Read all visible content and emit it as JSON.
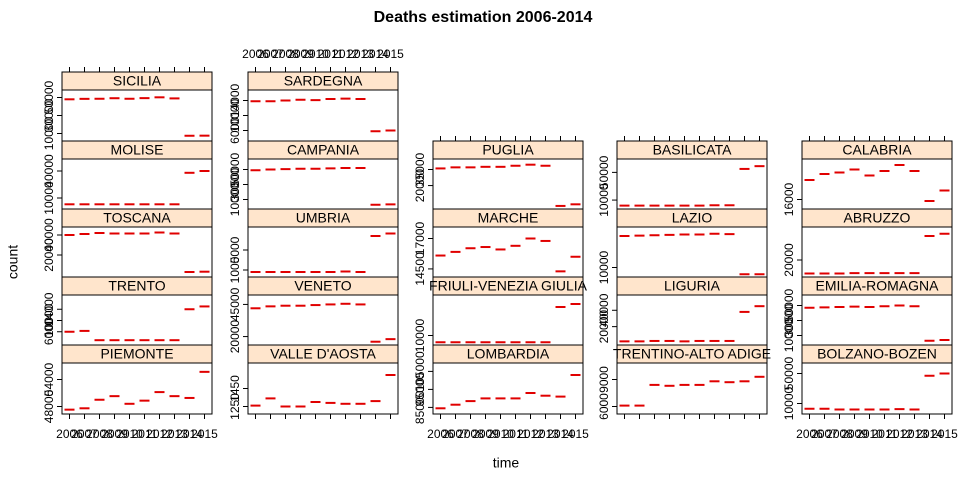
{
  "chart_data": {
    "type": "dash",
    "title": "Deaths estimation 2006-2014",
    "x_label": "time",
    "y_label": "count",
    "color": "#e00000",
    "x": [
      2006,
      2007,
      2008,
      2009,
      2010,
      2011,
      2012,
      2013,
      2014,
      2015
    ],
    "xlim": [
      2005.5,
      2015.5
    ],
    "xticks": [
      2006,
      2007,
      2008,
      2009,
      2010,
      2011,
      2012,
      2013,
      2014,
      2015
    ],
    "panels": [
      {
        "name": "SICILIA",
        "ylim": [
          5000,
          55000
        ],
        "yticks": [
          10000,
          30000,
          50000
        ],
        "values": [
          48000,
          48500,
          48600,
          49200,
          48600,
          49300,
          50200,
          49000,
          7500,
          7600
        ]
      },
      {
        "name": "MOLISE",
        "ylim": [
          0,
          50000
        ],
        "yticks": [
          10000,
          40000
        ],
        "values": [
          3000,
          3000,
          3000,
          3000,
          3000,
          3000,
          3000,
          3000,
          38000,
          40000
        ]
      },
      {
        "name": "TOSCANA",
        "ylim": [
          0,
          45000
        ],
        "yticks": [
          20000,
          40000
        ],
        "values": [
          40000,
          41000,
          42000,
          41500,
          41500,
          41500,
          42500,
          41500,
          3000,
          3300
        ]
      },
      {
        "name": "TRENTO",
        "ylim": [
          2000,
          18000
        ],
        "yticks": [
          6000,
          10000,
          14000
        ],
        "values": [
          6000,
          6300,
          3000,
          3000,
          3000,
          3000,
          3000,
          3000,
          14000,
          15000
        ]
      },
      {
        "name": "PIEMONTE",
        "ylim": [
          47000,
          57000
        ],
        "yticks": [
          48000,
          54000
        ],
        "values": [
          47300,
          47600,
          49500,
          50300,
          48600,
          49300,
          51200,
          50300,
          49900,
          55700
        ]
      },
      {
        "name": "SARDEGNA",
        "ylim": [
          4000,
          16000
        ],
        "yticks": [
          6000,
          10000,
          14000
        ],
        "values": [
          13800,
          13800,
          14000,
          14200,
          14100,
          14400,
          14500,
          14400,
          5800,
          6000
        ]
      },
      {
        "name": "CAMPANIA",
        "ylim": [
          0,
          60000
        ],
        "yticks": [
          10000,
          30000,
          50000
        ],
        "values": [
          49000,
          50000,
          50500,
          51000,
          51000,
          51500,
          52000,
          52000,
          3000,
          3500
        ]
      },
      {
        "name": "UMBRIA",
        "ylim": [
          0,
          9000
        ],
        "yticks": [
          1000,
          5000
        ],
        "values": [
          600,
          600,
          600,
          600,
          600,
          600,
          700,
          600,
          7800,
          8300
        ]
      },
      {
        "name": "VENETO",
        "ylim": [
          15000,
          50000
        ],
        "yticks": [
          20000,
          45000
        ],
        "values": [
          42000,
          43500,
          44000,
          44000,
          44500,
          45000,
          45500,
          45000,
          16000,
          18000
        ]
      },
      {
        "name": "VALLE D'AOSTA",
        "ylim": [
          1200,
          1700
        ],
        "yticks": [
          1250,
          1450
        ],
        "values": [
          1260,
          1340,
          1250,
          1250,
          1300,
          1290,
          1280,
          1280,
          1310,
          1600
        ]
      },
      {
        "name": "PUGLIA",
        "ylim": [
          0,
          42000
        ],
        "yticks": [
          20000,
          35000
        ],
        "values": [
          36000,
          37000,
          37000,
          37500,
          37500,
          38500,
          39500,
          38500,
          1000,
          2500
        ]
      },
      {
        "name": "MARCHE",
        "ylim": [
          14000,
          17700
        ],
        "yticks": [
          14500,
          17000
        ],
        "values": [
          15600,
          15900,
          16200,
          16300,
          16100,
          16400,
          17000,
          16800,
          14300,
          15500
        ]
      },
      {
        "name": "FRIULI-VENEZIA GIULIA",
        "ylim": [
          0,
          60000
        ],
        "yticks": [
          10000
        ],
        "values": [
          1000,
          1000,
          1000,
          1000,
          1000,
          1000,
          1000,
          1000,
          48000,
          52000
        ]
      },
      {
        "name": "LOMBARDIA",
        "ylim": [
          83000,
          108000
        ],
        "yticks": [
          85000,
          95000,
          105000
        ],
        "values": [
          84500,
          86500,
          88500,
          90000,
          90000,
          90000,
          93000,
          91500,
          91000,
          103000
        ]
      },
      {
        "name": "BASILICATA",
        "ylim": [
          0,
          65000
        ],
        "yticks": [
          10000,
          50000
        ],
        "values": [
          2000,
          2000,
          2000,
          2000,
          2000,
          2000,
          2500,
          2500,
          55000,
          59000
        ]
      },
      {
        "name": "LAZIO",
        "ylim": [
          0,
          60000
        ],
        "yticks": [
          10000
        ],
        "values": [
          52000,
          52500,
          53000,
          53500,
          54000,
          54000,
          55000,
          54500,
          1000,
          1000
        ]
      },
      {
        "name": "LIGURIA",
        "ylim": [
          0,
          55000
        ],
        "yticks": [
          20000,
          40000
        ],
        "values": [
          2000,
          2000,
          2500,
          2500,
          2000,
          2500,
          2500,
          2500,
          38000,
          45000
        ]
      },
      {
        "name": "TRENTINO-ALTO ADIGE",
        "ylim": [
          5500,
          10500
        ],
        "yticks": [
          6000,
          9000
        ],
        "values": [
          6100,
          6100,
          8400,
          8300,
          8400,
          8400,
          8800,
          8700,
          8800,
          9300
        ]
      },
      {
        "name": "CALABRIA",
        "ylim": [
          15500,
          18500
        ],
        "yticks": [
          16000
        ],
        "values": [
          17300,
          17700,
          17800,
          18000,
          17600,
          17900,
          18300,
          17900,
          15900,
          16600
        ]
      },
      {
        "name": "ABRUZZO",
        "ylim": [
          0,
          60000
        ],
        "yticks": [
          20000
        ],
        "values": [
          2000,
          2000,
          2000,
          2500,
          2500,
          2500,
          2500,
          2500,
          52000,
          55000
        ]
      },
      {
        "name": "EMILIA-ROMAGNA",
        "ylim": [
          0,
          60000
        ],
        "yticks": [
          10000,
          30000,
          50000
        ],
        "values": [
          47000,
          47500,
          48000,
          48500,
          48000,
          49000,
          50000,
          49000,
          3000,
          4000
        ]
      },
      {
        "name": "BOLZANO-BOZEN",
        "ylim": [
          0,
          60000
        ],
        "yticks": [
          10000,
          50000
        ],
        "values": [
          3000,
          3000,
          2000,
          2000,
          2000,
          2000,
          2500,
          2000,
          47000,
          50000
        ]
      }
    ]
  }
}
